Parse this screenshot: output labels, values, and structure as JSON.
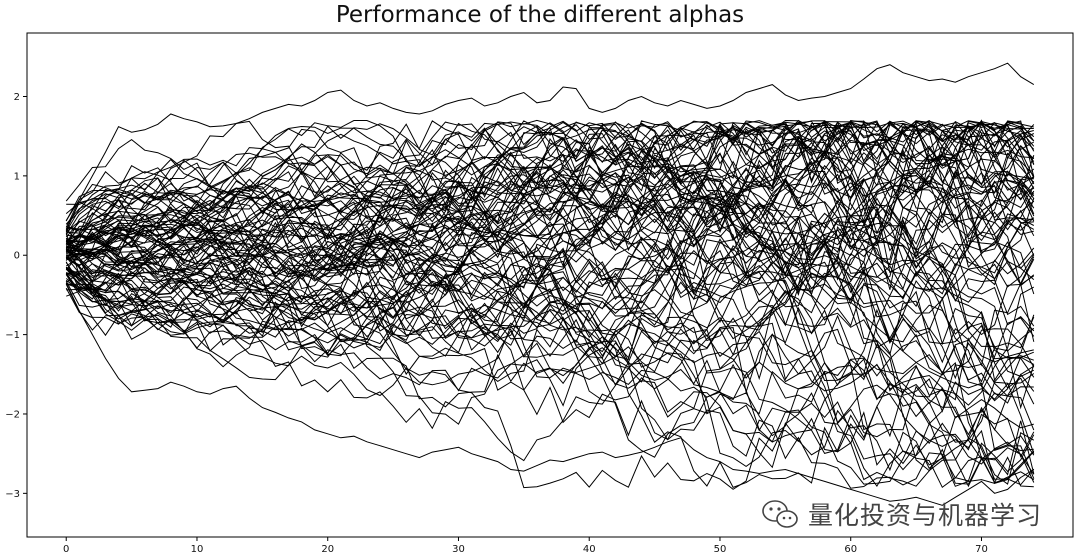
{
  "chart_data": {
    "type": "line",
    "title": "Performance of the different alphas",
    "xlabel": "",
    "ylabel": "",
    "xlim": [
      -3,
      77
    ],
    "ylim": [
      -3.55,
      2.8
    ],
    "xticks": [
      0,
      10,
      20,
      30,
      40,
      50,
      60,
      70
    ],
    "yticks": [
      -3,
      -2,
      -1,
      0,
      1,
      2
    ],
    "grid": false,
    "legend": "none",
    "line_color": "#000000",
    "n_points": 75,
    "series_count": 100,
    "series": [
      {
        "values": [
          0.35,
          0.7,
          1.0,
          1.3,
          1.62,
          1.55,
          1.58,
          1.65,
          1.78,
          1.72,
          1.68,
          1.62,
          1.63,
          1.66,
          1.72,
          1.8,
          1.85,
          1.9,
          1.88,
          1.95,
          2.05,
          2.08,
          1.95,
          1.88,
          1.92,
          1.85,
          1.8,
          1.78,
          1.82,
          1.9,
          1.95,
          1.98,
          1.88,
          1.92,
          2.0,
          2.05,
          1.92,
          1.95,
          2.12,
          2.1,
          1.85,
          1.8,
          1.85,
          1.95,
          2.0,
          1.92,
          1.88,
          1.95,
          1.9,
          1.85,
          1.88,
          1.95,
          2.05,
          2.1,
          2.15,
          2.02,
          1.95,
          1.98,
          2.0,
          2.05,
          2.1,
          2.22,
          2.35,
          2.4,
          2.3,
          2.25,
          2.2,
          2.22,
          2.18,
          2.25,
          2.3,
          2.35,
          2.42,
          2.25,
          2.15
        ]
      },
      {
        "values": [
          -0.35,
          -0.7,
          -1.0,
          -1.3,
          -1.55,
          -1.72,
          -1.7,
          -1.68,
          -1.6,
          -1.65,
          -1.72,
          -1.75,
          -1.68,
          -1.65,
          -1.8,
          -1.92,
          -1.98,
          -2.05,
          -2.1,
          -2.2,
          -2.25,
          -2.3,
          -2.28,
          -2.35,
          -2.4,
          -2.45,
          -2.5,
          -2.55,
          -2.48,
          -2.45,
          -2.42,
          -2.5,
          -2.55,
          -2.6,
          -2.7,
          -2.72,
          -2.65,
          -2.58,
          -2.6,
          -2.55,
          -2.5,
          -2.48,
          -2.55,
          -2.52,
          -2.48,
          -2.42,
          -2.35,
          -2.3,
          -2.45,
          -2.55,
          -2.6,
          -2.7,
          -2.72,
          -2.75,
          -2.72,
          -2.7,
          -2.75,
          -2.8,
          -2.85,
          -2.9,
          -2.95,
          -3.0,
          -3.05,
          -3.1,
          -3.08,
          -3.05,
          -3.1,
          -3.15,
          -3.05,
          -2.95,
          -2.85,
          -3.0,
          -2.95,
          -2.8,
          -2.7
        ]
      }
    ]
  },
  "watermark": {
    "text": "量化投资与机器学习",
    "icon": "wechat-icon"
  }
}
